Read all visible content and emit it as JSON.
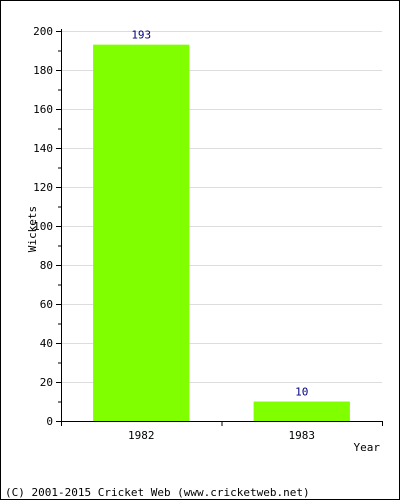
{
  "chart_data": {
    "type": "bar",
    "categories": [
      "1982",
      "1983"
    ],
    "values": [
      193,
      10
    ],
    "data_labels": [
      "193",
      "10"
    ],
    "xlabel": "Year",
    "ylabel": "Wickets",
    "ylim": [
      0,
      200
    ],
    "yticks": [
      0,
      20,
      40,
      60,
      80,
      100,
      120,
      140,
      160,
      180,
      200
    ],
    "grid": true,
    "legend": "none"
  },
  "colors": {
    "bar": "#80ff00",
    "grid": "#dddddd",
    "axis": "#000000",
    "data_label": "#000080",
    "text": "#000000"
  },
  "footer": {
    "text": "(C) 2001-2015 Cricket Web (www.cricketweb.net)"
  }
}
